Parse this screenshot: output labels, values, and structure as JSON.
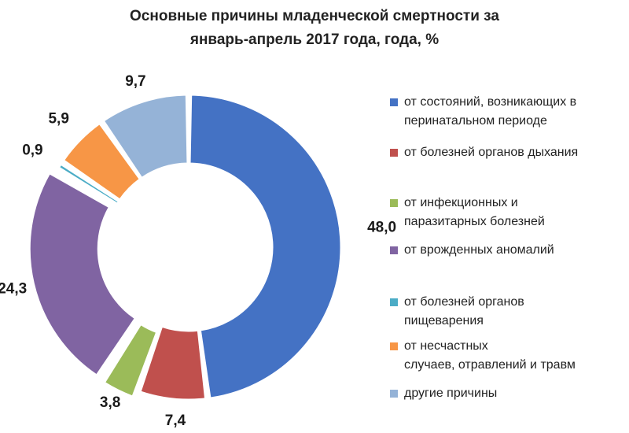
{
  "chart_data": {
    "type": "pie",
    "donut": true,
    "title": "Основные причины младенческой смертности за",
    "title_line2": "январь-апрель 2017 года, года, %",
    "legend_position": "right",
    "slices": [
      {
        "label": "от состояний, возникающих в\nперинатальном периоде",
        "value": 48.0,
        "value_label": "48,0",
        "color": "#4472C4",
        "exploded": false
      },
      {
        "label": "от болезней органов дыхания",
        "value": 7.4,
        "value_label": "7,4",
        "color": "#C0504D",
        "exploded": false
      },
      {
        "label": "от инфекционных и\nпаразитарных болезней",
        "value": 3.8,
        "value_label": "3,8",
        "color": "#9BBB59",
        "exploded": true
      },
      {
        "label": "от врожденных аномалий",
        "value": 24.3,
        "value_label": "24,3",
        "color": "#8064A2",
        "exploded": true
      },
      {
        "label": "от болезней органов\nпищеварения",
        "value": 0.9,
        "value_label": "0,9",
        "color": "#4BACC6",
        "exploded": false
      },
      {
        "label": "от несчастных\nслучаев, отравлений и травм",
        "value": 5.9,
        "value_label": "5,9",
        "color": "#F79646",
        "exploded": false
      },
      {
        "label": "другие причины",
        "value": 9.7,
        "value_label": "9,7",
        "color": "#95B3D7",
        "exploded": false
      }
    ]
  }
}
